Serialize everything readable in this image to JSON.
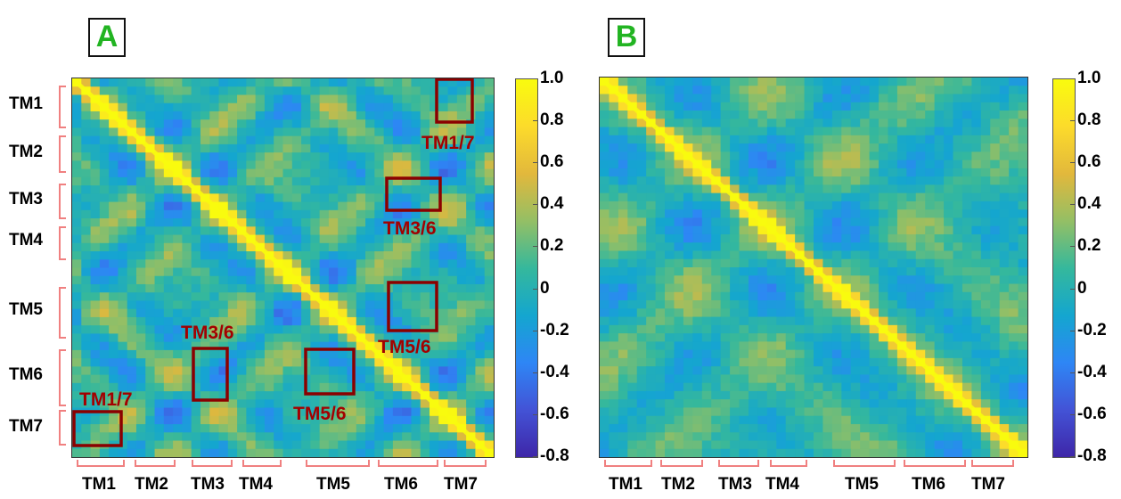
{
  "panels": [
    {
      "id": "A",
      "label": "A",
      "label_color": "#22b422"
    },
    {
      "id": "B",
      "label": "B",
      "label_color": "#22b422"
    }
  ],
  "colors": {
    "box": "#8b0000",
    "annotation": "#a30000",
    "brace": "#f08080",
    "colormap": [
      "#3e26a8",
      "#4353d6",
      "#2e86f5",
      "#14a6cf",
      "#35b89c",
      "#94bf65",
      "#e2b83c",
      "#fcdb2b",
      "#f9fb0e"
    ]
  },
  "segment_labels": [
    "TM1",
    "TM2",
    "TM3",
    "TM4",
    "TM5",
    "TM6",
    "TM7"
  ],
  "colorbar": {
    "min": -0.8,
    "max": 1.0,
    "ticks": [
      "1.0",
      "0.8",
      "0.6",
      "0.4",
      "0.2",
      "0",
      "-0.2",
      "-0.4",
      "-0.6",
      "-0.8"
    ],
    "tick_values": [
      1.0,
      0.8,
      0.6,
      0.4,
      0.2,
      0,
      -0.2,
      -0.4,
      -0.6,
      -0.8
    ]
  },
  "chart_data": [
    {
      "type": "heatmap",
      "panel": "A",
      "title": "",
      "xlabel": "",
      "ylabel": "",
      "value_range": [
        -0.8,
        1.0
      ],
      "x_segments": [
        "TM1",
        "TM2",
        "TM3",
        "TM4",
        "TM5",
        "TM6",
        "TM7"
      ],
      "y_segments": [
        "TM1",
        "TM2",
        "TM3",
        "TM4",
        "TM5",
        "TM6",
        "TM7"
      ],
      "diagonal_value": 1.0,
      "annotations": [
        "TM1/7",
        "TM3/6",
        "TM5/6",
        "TM1/7",
        "TM3/6",
        "TM5/6"
      ]
    },
    {
      "type": "heatmap",
      "panel": "B",
      "title": "",
      "xlabel": "",
      "ylabel": "",
      "value_range": [
        -0.8,
        1.0
      ],
      "x_segments": [
        "TM1",
        "TM2",
        "TM3",
        "TM4",
        "TM5",
        "TM6",
        "TM7"
      ],
      "y_segments": [],
      "diagonal_value": 1.0,
      "annotations": []
    }
  ]
}
